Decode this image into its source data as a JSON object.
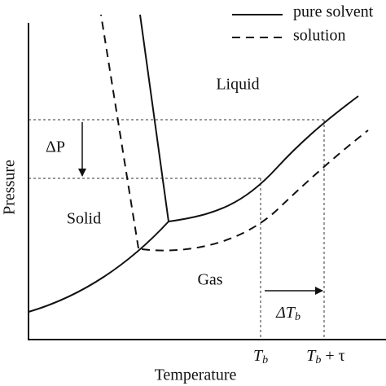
{
  "legend": {
    "pure_solvent": "pure solvent",
    "solution": "solution"
  },
  "regions": {
    "liquid": "Liquid",
    "solid": "Solid",
    "gas": "Gas"
  },
  "annotations": {
    "delta_p": "ΔP",
    "delta_tb": {
      "main": "ΔT",
      "sub": "b"
    }
  },
  "x_ticks": {
    "tb": {
      "main": "T",
      "sub": "b"
    },
    "tb_tau": {
      "main": "T",
      "sub": "b",
      "rest": " + τ"
    }
  },
  "axes": {
    "x_label": "Temperature",
    "y_label": "Pressure"
  }
}
